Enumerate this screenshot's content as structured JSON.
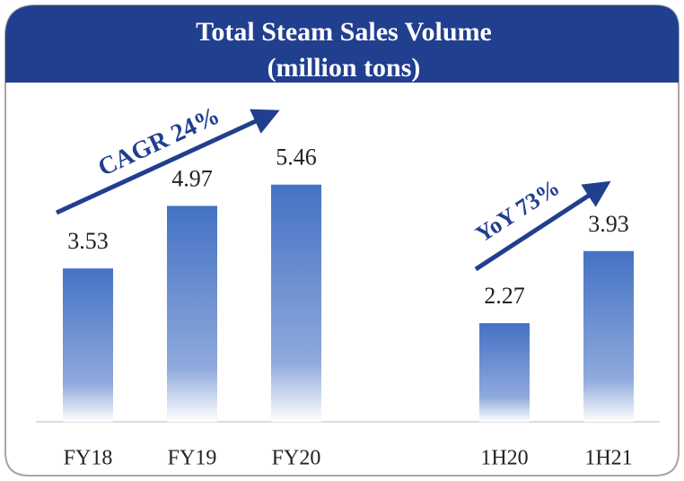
{
  "chart_data": {
    "type": "bar",
    "title": "Total Steam Sales Volume",
    "subtitle": "(million tons)",
    "categories": [
      "FY18",
      "FY19",
      "FY20",
      null,
      "1H20",
      "1H21"
    ],
    "values": [
      3.53,
      4.97,
      5.46,
      null,
      2.27,
      3.93
    ],
    "color": "#4472c4",
    "annotations": [
      "CAGR 24%",
      "YoY 73%"
    ]
  }
}
